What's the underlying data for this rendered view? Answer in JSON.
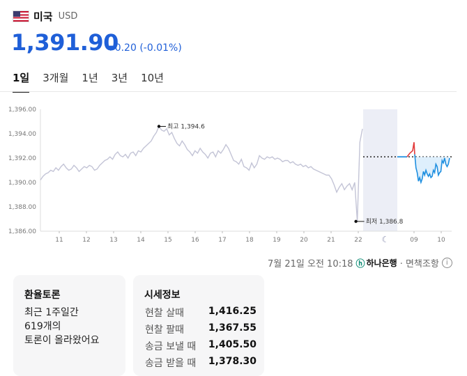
{
  "header": {
    "country": "미국",
    "code": "USD"
  },
  "quote": {
    "price": "1,391.90",
    "change": "0.20 (-0.01%)",
    "direction": "down"
  },
  "tabs": [
    {
      "label": "1일",
      "active": true
    },
    {
      "label": "3개월",
      "active": false
    },
    {
      "label": "1년",
      "active": false
    },
    {
      "label": "3년",
      "active": false
    },
    {
      "label": "10년",
      "active": false
    }
  ],
  "chart_data": {
    "type": "line",
    "y_ticks": [
      "1,396.00",
      "1,394.00",
      "1,392.00",
      "1,390.00",
      "1,388.00",
      "1,386.00"
    ],
    "ylim": [
      1386,
      1396
    ],
    "x_ticks": [
      "11",
      "12",
      "13",
      "14",
      "15",
      "16",
      "17",
      "18",
      "19",
      "20",
      "21",
      "22",
      "09",
      "10"
    ],
    "moon_icon": "moon-icon",
    "high_label": "최고 1,394.6",
    "low_label": "최저 1,386.8",
    "reference_value": 1392.1,
    "colors": {
      "history": "#c3c4d6",
      "live_up": "#e23b3b",
      "live_down": "#1e8fe0",
      "night_band": "#eceef6",
      "fill": "#d6ebfb"
    },
    "series_history": [
      1390.2,
      1390.5,
      1390.7,
      1390.8,
      1391.0,
      1390.9,
      1391.2,
      1391.0,
      1391.3,
      1391.5,
      1391.2,
      1391.0,
      1391.1,
      1391.4,
      1391.2,
      1390.9,
      1391.1,
      1391.3,
      1391.2,
      1391.4,
      1391.3,
      1391.0,
      1391.1,
      1391.4,
      1391.6,
      1391.8,
      1391.9,
      1392.1,
      1391.9,
      1392.3,
      1392.5,
      1392.2,
      1392.1,
      1392.3,
      1392.0,
      1392.4,
      1392.5,
      1392.2,
      1392.6,
      1392.5,
      1392.8,
      1393.0,
      1393.2,
      1393.4,
      1393.8,
      1394.1,
      1394.6,
      1394.3,
      1394.2,
      1394.4,
      1393.9,
      1394.1,
      1393.6,
      1393.2,
      1393.0,
      1393.4,
      1393.1,
      1392.7,
      1392.5,
      1392.2,
      1392.6,
      1392.4,
      1392.8,
      1392.5,
      1392.3,
      1392.0,
      1392.4,
      1392.5,
      1392.1,
      1392.6,
      1392.4,
      1392.7,
      1393.1,
      1392.8,
      1392.3,
      1391.8,
      1391.7,
      1391.5,
      1391.9,
      1391.3,
      1391.2,
      1391.0,
      1391.6,
      1391.2,
      1391.5,
      1392.2,
      1392.0,
      1391.9,
      1392.1,
      1392.0,
      1392.1,
      1391.9,
      1392.0,
      1391.9,
      1391.7,
      1391.8,
      1391.8,
      1391.6,
      1391.7,
      1391.5,
      1391.4,
      1391.5,
      1391.3,
      1391.4,
      1391.2,
      1391.3,
      1391.1,
      1391.0,
      1390.9,
      1390.8,
      1390.7,
      1390.6,
      1390.6,
      1390.3,
      1389.8,
      1389.2,
      1389.6,
      1389.9,
      1389.4,
      1389.7,
      1389.9,
      1389.4,
      1390.0,
      1386.8,
      1393.3,
      1394.4
    ]
  },
  "timestamp": "7월 21일 오전 10:18",
  "source": {
    "logo_text": "하나은행",
    "suffix": "· 면책조항"
  },
  "forum": {
    "title": "환율토론",
    "line1": "최근 1주일간",
    "line2": "619개의",
    "line3": "토론이 올라왔어요"
  },
  "rates": {
    "title": "시세정보",
    "rows": [
      {
        "label": "현찰 살때",
        "value": "1,416.25"
      },
      {
        "label": "현찰 팔때",
        "value": "1,367.55"
      },
      {
        "label": "송금 보낼 때",
        "value": "1,405.50"
      },
      {
        "label": "송금 받을 때",
        "value": "1,378.30"
      }
    ]
  }
}
